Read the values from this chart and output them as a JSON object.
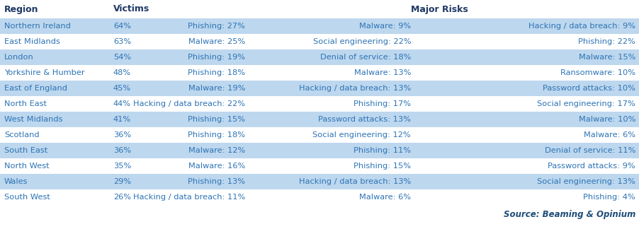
{
  "headers_left": [
    "Region",
    "Victims"
  ],
  "header_right": "Major Risks",
  "rows": [
    [
      "Northern Ireland",
      "64%",
      "Phishing: 27%",
      "Malware: 9%",
      "Hacking / data breach: 9%"
    ],
    [
      "East Midlands",
      "63%",
      "Malware: 25%",
      "Social engineering: 22%",
      "Phishing: 22%"
    ],
    [
      "London",
      "54%",
      "Phishing: 19%",
      "Denial of service: 18%",
      "Malware: 15%"
    ],
    [
      "Yorkshire & Humber",
      "48%",
      "Phishing: 18%",
      "Malware: 13%",
      "Ransomware: 10%"
    ],
    [
      "East of England",
      "45%",
      "Malware: 19%",
      "Hacking / data breach: 13%",
      "Password attacks: 10%"
    ],
    [
      "North East",
      "44%",
      "Hacking / data breach: 22%",
      "Phishing: 17%",
      "Social engineering: 17%"
    ],
    [
      "West Midlands",
      "41%",
      "Phishing: 15%",
      "Password attacks: 13%",
      "Malware: 10%"
    ],
    [
      "Scotland",
      "36%",
      "Phishing: 18%",
      "Social engineering: 12%",
      "Malware: 6%"
    ],
    [
      "South East",
      "36%",
      "Malware: 12%",
      "Phishing: 11%",
      "Denial of service: 11%"
    ],
    [
      "North West",
      "35%",
      "Malware: 16%",
      "Phishing: 15%",
      "Password attacks: 9%"
    ],
    [
      "Wales",
      "29%",
      "Phishing: 13%",
      "Hacking / data breach: 13%",
      "Social engineering: 13%"
    ],
    [
      "South West",
      "26%",
      "Hacking / data breach: 11%",
      "Malware: 6%",
      "Phishing: 4%"
    ]
  ],
  "shaded_rows": [
    0,
    2,
    4,
    6,
    8,
    10
  ],
  "row_bg_shaded": "#BDD7EE",
  "row_bg_plain": "#FFFFFF",
  "header_bg": "#FFFFFF",
  "text_color": "#2E74B5",
  "header_text_color": "#1F3864",
  "source_text": "Source: Beaming & Opinium",
  "source_color": "#1F4E79",
  "header_fontsize": 9.0,
  "row_fontsize": 8.2,
  "source_fontsize": 8.5
}
